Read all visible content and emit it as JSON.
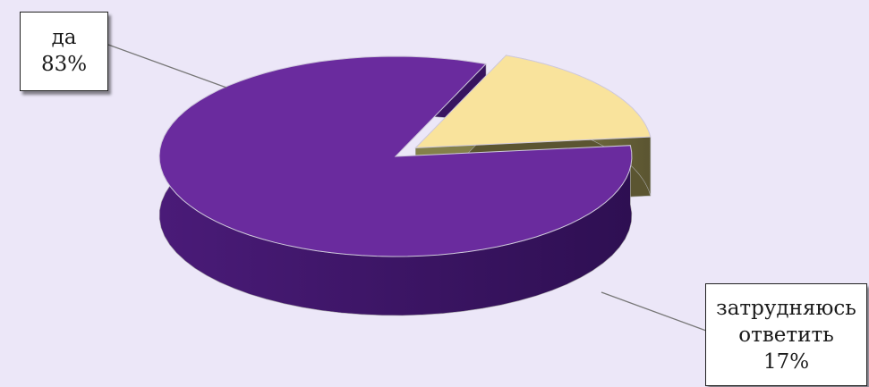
{
  "chart_data": {
    "type": "pie",
    "style": "3d-exploded",
    "categories": [
      "да",
      "затрудняюсь ответить"
    ],
    "values": [
      83,
      17
    ],
    "colors": [
      "#6a2b9e",
      "#f9e39c"
    ],
    "labels": [
      {
        "name_lines": [
          "да"
        ],
        "value": "83%"
      },
      {
        "name_lines": [
          "затрудняюсь",
          "ответить"
        ],
        "value": "17%"
      }
    ],
    "exploded": [
      false,
      true
    ],
    "legend": "none",
    "background": "#ece7f8"
  }
}
